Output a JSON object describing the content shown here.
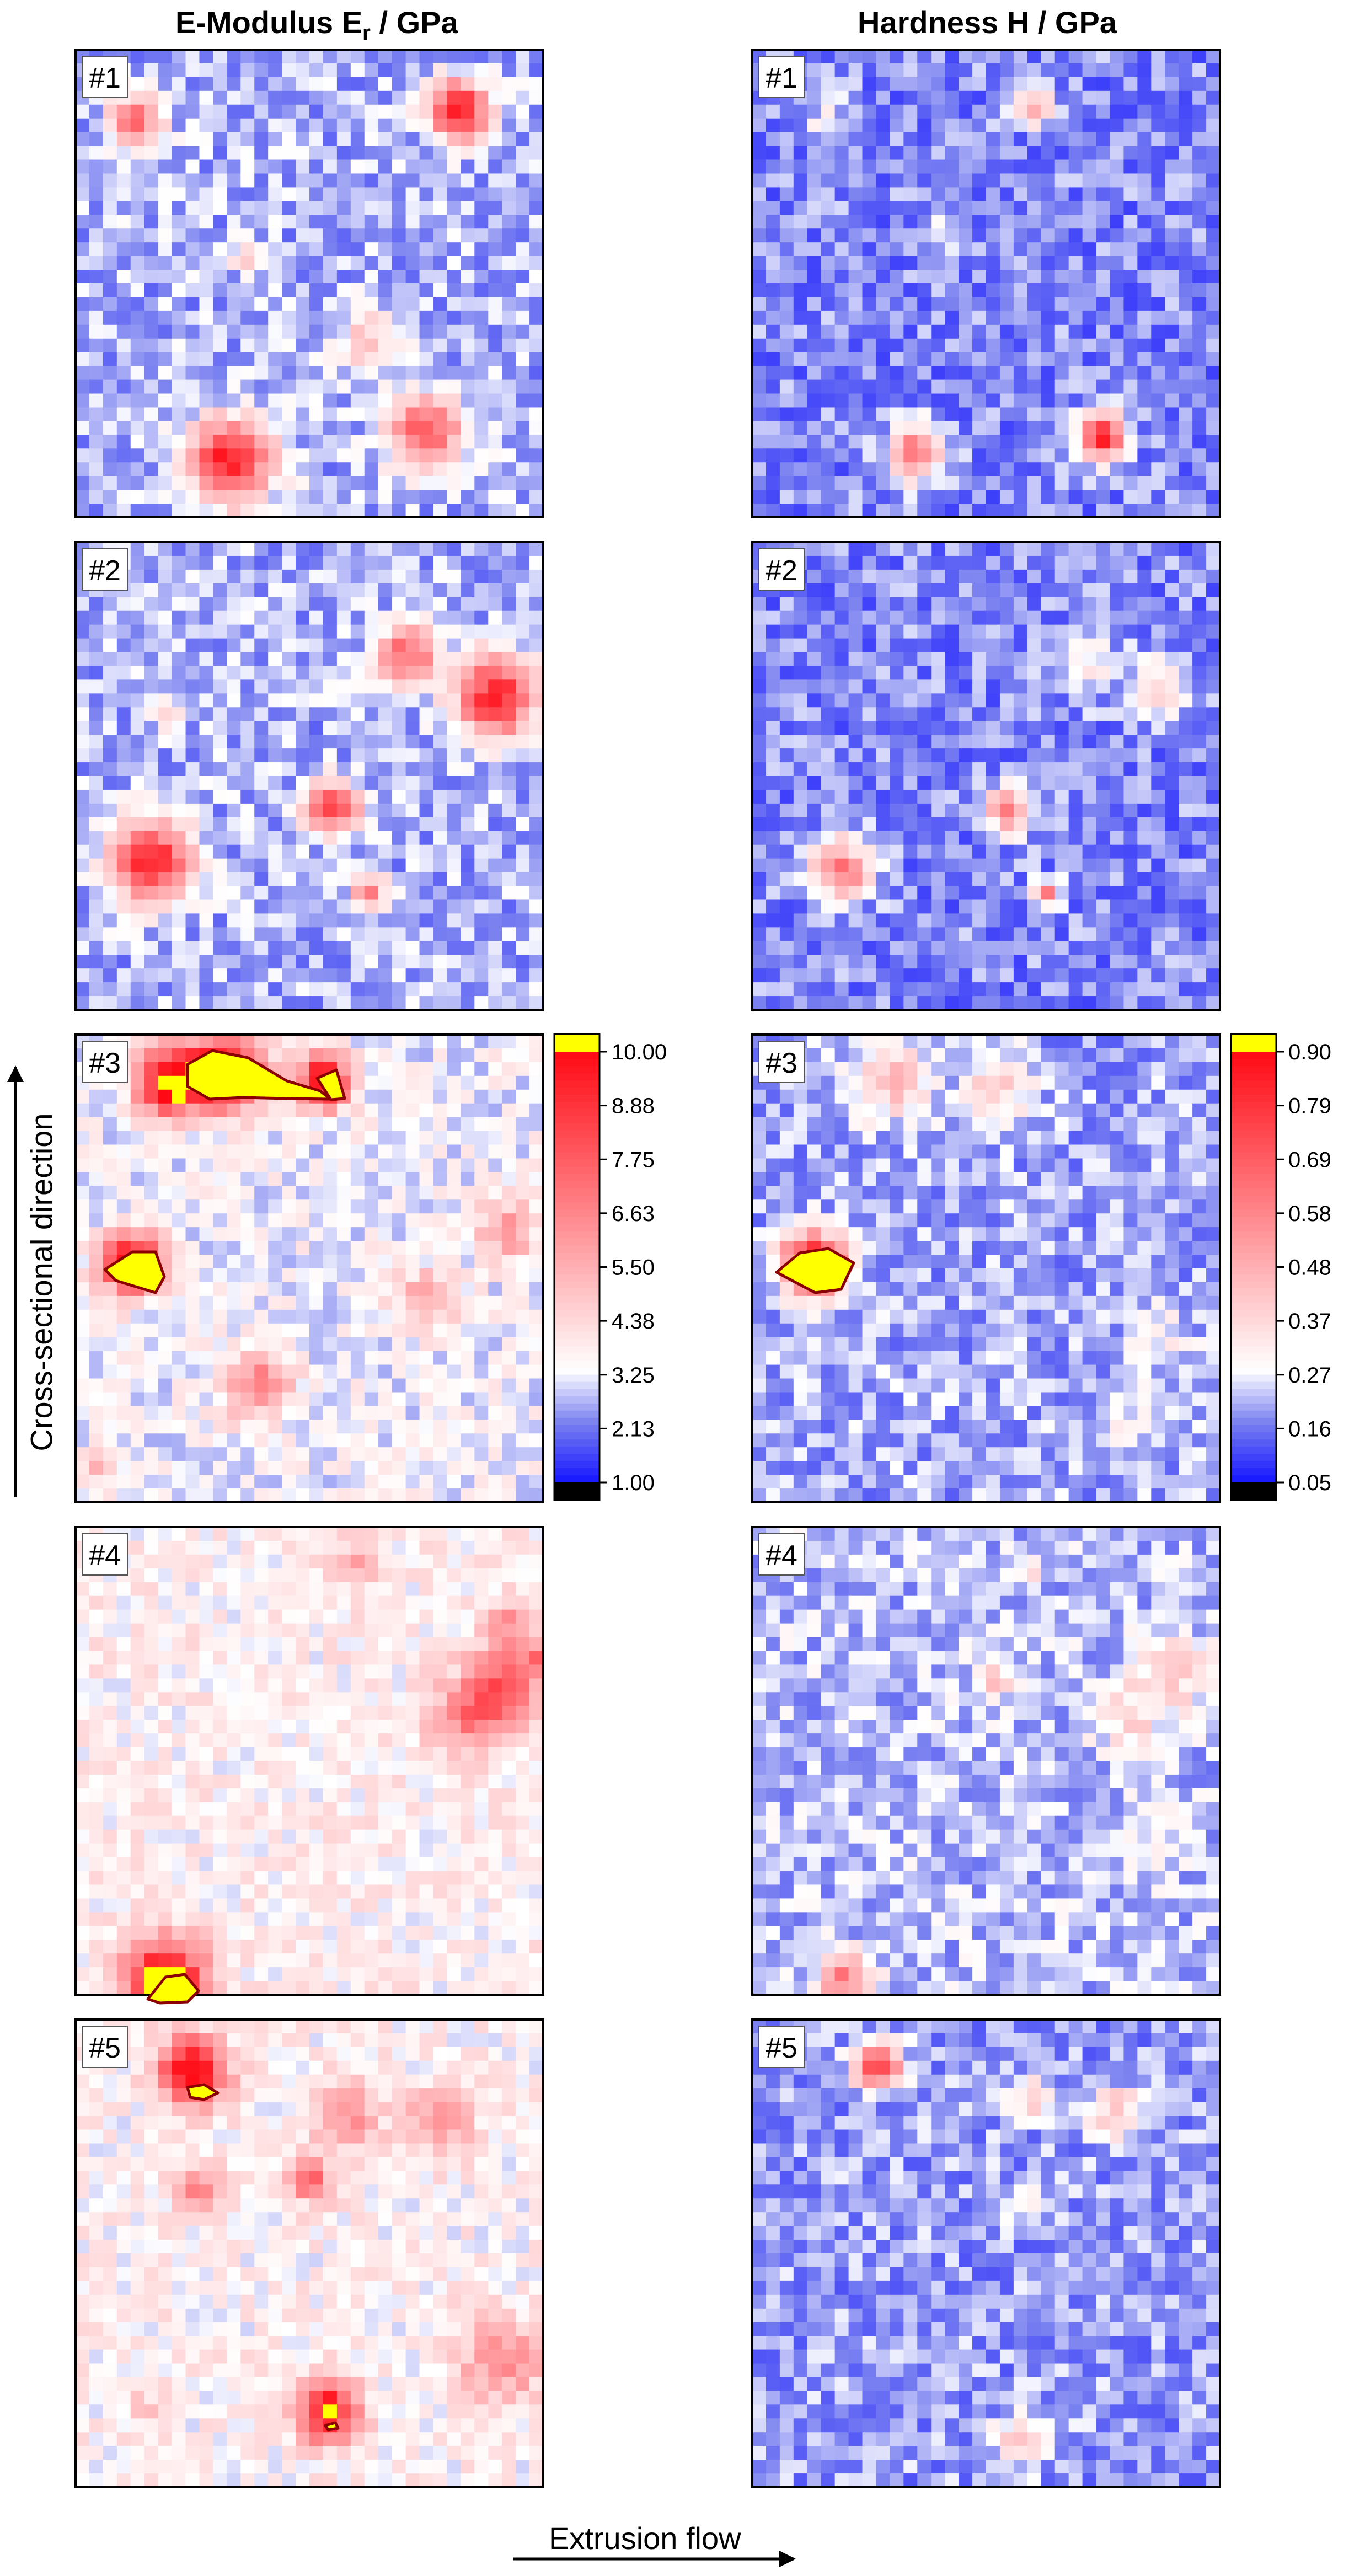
{
  "columns": [
    {
      "id": "emod",
      "title_main": "E-Modulus E",
      "title_sub": "r",
      "title_unit": " / GPa"
    },
    {
      "id": "hard",
      "title_main": "Hardness H",
      "title_sub": "",
      "title_unit": " / GPa"
    }
  ],
  "axis_labels": {
    "vertical": "Cross-sectional direction",
    "horizontal": "Extrusion flow"
  },
  "colors": {
    "low_black": "#000000",
    "blue_deep": "#1414ff",
    "blue_mid": "#7b82f0",
    "white": "#ffffff",
    "red_peak": "#ff0a14",
    "over_yellow": "#ffff00",
    "overlay_stroke": "#8b0000"
  },
  "chart_data": [
    {
      "type": "heatmap",
      "title": "E-Modulus Er / GPa",
      "colorbar": {
        "min": 1.0,
        "max": 10.0,
        "ticks": [
          "10.00",
          "8.88",
          "7.75",
          "6.63",
          "5.50",
          "4.38",
          "3.25",
          "2.13",
          "1.00"
        ],
        "over_color": "#ffff00",
        "under_color": "#000000"
      },
      "maps": [
        {
          "label": "#1",
          "base_level": 2.65,
          "peaks": [
            {
              "x": 0.82,
              "y": 0.87,
              "v": 9.4,
              "s": 0.045
            },
            {
              "x": 0.13,
              "y": 0.85,
              "v": 7.0,
              "s": 0.04
            },
            {
              "x": 0.33,
              "y": 0.12,
              "v": 9.6,
              "s": 0.06
            },
            {
              "x": 0.75,
              "y": 0.18,
              "v": 8.0,
              "s": 0.055
            },
            {
              "x": 0.63,
              "y": 0.38,
              "v": 4.7,
              "s": 0.05
            },
            {
              "x": 0.37,
              "y": 0.55,
              "v": 4.4,
              "s": 0.025
            }
          ]
        },
        {
          "label": "#2",
          "base_level": 2.65,
          "peaks": [
            {
              "x": 0.71,
              "y": 0.76,
              "v": 7.6,
              "s": 0.045
            },
            {
              "x": 0.9,
              "y": 0.67,
              "v": 9.2,
              "s": 0.06
            },
            {
              "x": 0.55,
              "y": 0.43,
              "v": 8.2,
              "s": 0.04
            },
            {
              "x": 0.16,
              "y": 0.32,
              "v": 9.3,
              "s": 0.06
            },
            {
              "x": 0.63,
              "y": 0.25,
              "v": 7.0,
              "s": 0.025
            },
            {
              "x": 0.2,
              "y": 0.63,
              "v": 4.4,
              "s": 0.025
            }
          ]
        },
        {
          "label": "#3",
          "base_level": 3.35,
          "peaks": [
            {
              "x": 0.32,
              "y": 0.92,
              "v": 11.0,
              "s": 0.055
            },
            {
              "x": 0.2,
              "y": 0.9,
              "v": 10.6,
              "s": 0.05
            },
            {
              "x": 0.53,
              "y": 0.9,
              "v": 10.4,
              "s": 0.04
            },
            {
              "x": 0.12,
              "y": 0.51,
              "v": 10.8,
              "s": 0.045
            },
            {
              "x": 0.92,
              "y": 0.58,
              "v": 6.2,
              "s": 0.045
            },
            {
              "x": 0.75,
              "y": 0.43,
              "v": 5.9,
              "s": 0.045
            },
            {
              "x": 0.39,
              "y": 0.25,
              "v": 6.7,
              "s": 0.05
            },
            {
              "x": 0.05,
              "y": 0.08,
              "v": 5.5,
              "s": 0.025
            }
          ]
        },
        {
          "label": "#4",
          "base_level": 3.75,
          "peaks": [
            {
              "x": 0.19,
              "y": 0.03,
              "v": 11.2,
              "s": 0.06
            },
            {
              "x": 0.92,
              "y": 0.67,
              "v": 7.2,
              "s": 0.055
            },
            {
              "x": 0.85,
              "y": 0.59,
              "v": 6.8,
              "s": 0.06
            },
            {
              "x": 0.92,
              "y": 0.79,
              "v": 6.2,
              "s": 0.035
            },
            {
              "x": 0.6,
              "y": 0.92,
              "v": 5.4,
              "s": 0.04
            },
            {
              "x": 0.99,
              "y": 0.72,
              "v": 7.0,
              "s": 0.02
            }
          ]
        },
        {
          "label": "#5",
          "base_level": 3.7,
          "peaks": [
            {
              "x": 0.25,
              "y": 0.89,
              "v": 10.5,
              "s": 0.05
            },
            {
              "x": 0.58,
              "y": 0.8,
              "v": 6.5,
              "s": 0.05
            },
            {
              "x": 0.78,
              "y": 0.78,
              "v": 6.2,
              "s": 0.05
            },
            {
              "x": 0.5,
              "y": 0.66,
              "v": 7.4,
              "s": 0.035
            },
            {
              "x": 0.27,
              "y": 0.63,
              "v": 7.0,
              "s": 0.035
            },
            {
              "x": 0.54,
              "y": 0.16,
              "v": 10.3,
              "s": 0.045
            },
            {
              "x": 0.91,
              "y": 0.27,
              "v": 6.6,
              "s": 0.06
            },
            {
              "x": 0.15,
              "y": 0.17,
              "v": 4.8,
              "s": 0.025
            }
          ]
        }
      ]
    },
    {
      "type": "heatmap",
      "title": "Hardness H / GPa",
      "colorbar": {
        "min": 0.05,
        "max": 0.9,
        "ticks": [
          "0.90",
          "0.79",
          "0.69",
          "0.58",
          "0.48",
          "0.37",
          "0.27",
          "0.16",
          "0.05"
        ],
        "over_color": "#ffff00",
        "under_color": "#000000"
      },
      "maps": [
        {
          "label": "#1",
          "base_level": 0.17,
          "peaks": [
            {
              "x": 0.6,
              "y": 0.88,
              "v": 0.45,
              "s": 0.03
            },
            {
              "x": 0.35,
              "y": 0.14,
              "v": 0.6,
              "s": 0.04
            },
            {
              "x": 0.75,
              "y": 0.17,
              "v": 0.8,
              "s": 0.035
            },
            {
              "x": 0.17,
              "y": 0.84,
              "v": 0.3,
              "s": 0.035
            },
            {
              "x": 0.4,
              "y": 0.6,
              "v": 0.28,
              "s": 0.03
            }
          ]
        },
        {
          "label": "#2",
          "base_level": 0.17,
          "peaks": [
            {
              "x": 0.87,
              "y": 0.69,
              "v": 0.42,
              "s": 0.04
            },
            {
              "x": 0.55,
              "y": 0.43,
              "v": 0.55,
              "s": 0.035
            },
            {
              "x": 0.19,
              "y": 0.3,
              "v": 0.6,
              "s": 0.045
            },
            {
              "x": 0.63,
              "y": 0.25,
              "v": 0.55,
              "s": 0.02
            },
            {
              "x": 0.72,
              "y": 0.74,
              "v": 0.3,
              "s": 0.05
            }
          ]
        },
        {
          "label": "#3",
          "base_level": 0.2,
          "peaks": [
            {
              "x": 0.3,
              "y": 0.9,
              "v": 0.42,
              "s": 0.06
            },
            {
              "x": 0.53,
              "y": 0.89,
              "v": 0.4,
              "s": 0.05
            },
            {
              "x": 0.13,
              "y": 0.51,
              "v": 1.0,
              "s": 0.045
            },
            {
              "x": 0.87,
              "y": 0.35,
              "v": 0.3,
              "s": 0.05
            },
            {
              "x": 0.8,
              "y": 0.18,
              "v": 0.28,
              "s": 0.05
            }
          ]
        },
        {
          "label": "#4",
          "base_level": 0.22,
          "peaks": [
            {
              "x": 0.9,
              "y": 0.68,
              "v": 0.38,
              "s": 0.06
            },
            {
              "x": 0.8,
              "y": 0.59,
              "v": 0.36,
              "s": 0.05
            },
            {
              "x": 0.52,
              "y": 0.67,
              "v": 0.45,
              "s": 0.025
            },
            {
              "x": 0.59,
              "y": 0.91,
              "v": 0.4,
              "s": 0.02
            },
            {
              "x": 0.2,
              "y": 0.03,
              "v": 0.6,
              "s": 0.04
            },
            {
              "x": 0.85,
              "y": 0.33,
              "v": 0.3,
              "s": 0.05
            }
          ]
        },
        {
          "label": "#5",
          "base_level": 0.19,
          "peaks": [
            {
              "x": 0.27,
              "y": 0.9,
              "v": 0.75,
              "s": 0.035
            },
            {
              "x": 0.6,
              "y": 0.83,
              "v": 0.42,
              "s": 0.03
            },
            {
              "x": 0.78,
              "y": 0.8,
              "v": 0.42,
              "s": 0.04
            },
            {
              "x": 0.57,
              "y": 0.1,
              "v": 0.4,
              "s": 0.04
            },
            {
              "x": 0.58,
              "y": 0.61,
              "v": 0.3,
              "s": 0.03
            }
          ]
        }
      ]
    }
  ]
}
